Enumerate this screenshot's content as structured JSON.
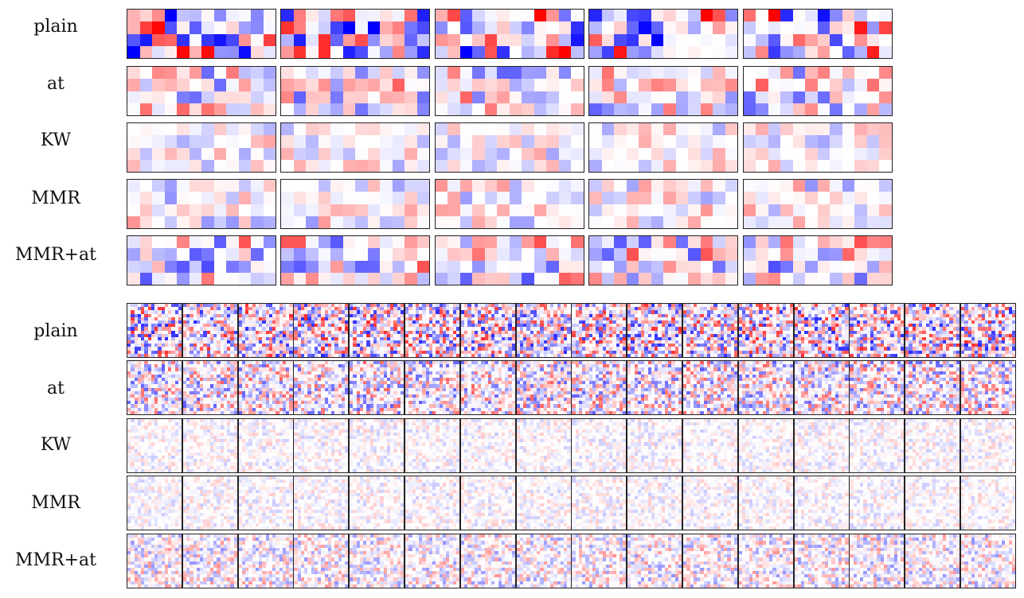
{
  "chart_data": [
    {
      "type": "heatmap",
      "title": "",
      "row_labels": [
        "plain",
        "at",
        "KW",
        "MMR",
        "MMR+at"
      ],
      "panels_per_row": 5,
      "cells_per_panel": [
        4,
        12
      ],
      "value_range": [
        -1,
        1
      ],
      "colormap": "bwr",
      "intensity_by_row": [
        0.75,
        0.45,
        0.25,
        0.3,
        0.5
      ]
    },
    {
      "type": "heatmap",
      "title": "",
      "row_labels": [
        "plain",
        "at",
        "KW",
        "MMR",
        "MMR+at"
      ],
      "panels_per_row": 16,
      "cells_per_panel": [
        16,
        16
      ],
      "value_range": [
        -1,
        1
      ],
      "colormap": "bwr",
      "intensity_by_row": [
        0.6,
        0.45,
        0.15,
        0.15,
        0.3
      ]
    }
  ],
  "colors": {
    "negative": "#0000ff",
    "zero": "#ffffff",
    "positive": "#ff0000",
    "border": "#222222"
  }
}
